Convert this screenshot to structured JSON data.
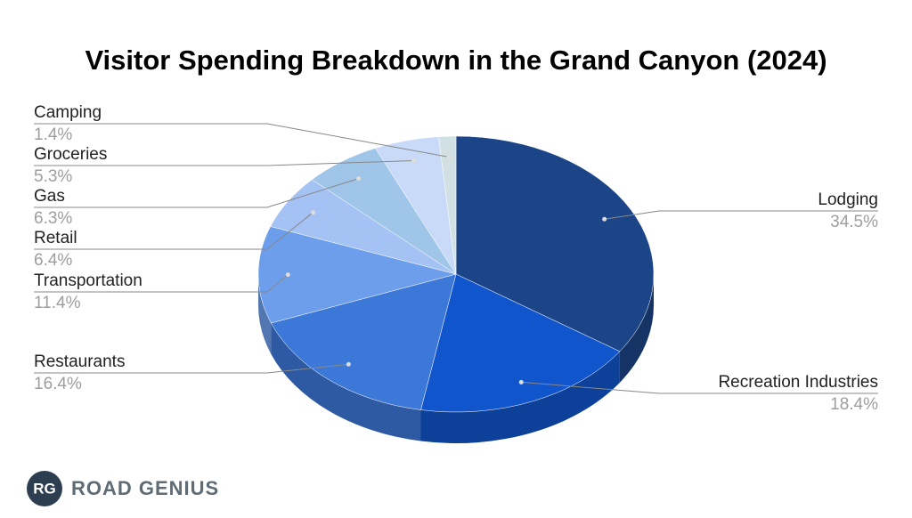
{
  "chart_data": {
    "type": "pie",
    "title": "Visitor Spending Breakdown in the Grand Canyon (2024)",
    "categories": [
      "Lodging",
      "Recreation Industries",
      "Restaurants",
      "Transportation",
      "Retail",
      "Gas",
      "Groceries",
      "Camping"
    ],
    "values": [
      34.5,
      18.4,
      16.4,
      11.4,
      6.4,
      6.3,
      5.3,
      1.4
    ],
    "value_labels": [
      "34.5%",
      "18.4%",
      "16.4%",
      "11.4%",
      "6.4%",
      "6.3%",
      "5.3%",
      "1.4%"
    ],
    "colors": [
      "#1c4587",
      "#1155cc",
      "#3c78d8",
      "#6d9eeb",
      "#a4c2f4",
      "#9fc5e8",
      "#c9daf8",
      "#d0e0e3"
    ]
  },
  "logo": {
    "initials": "RG",
    "name": "ROAD GENIUS"
  }
}
